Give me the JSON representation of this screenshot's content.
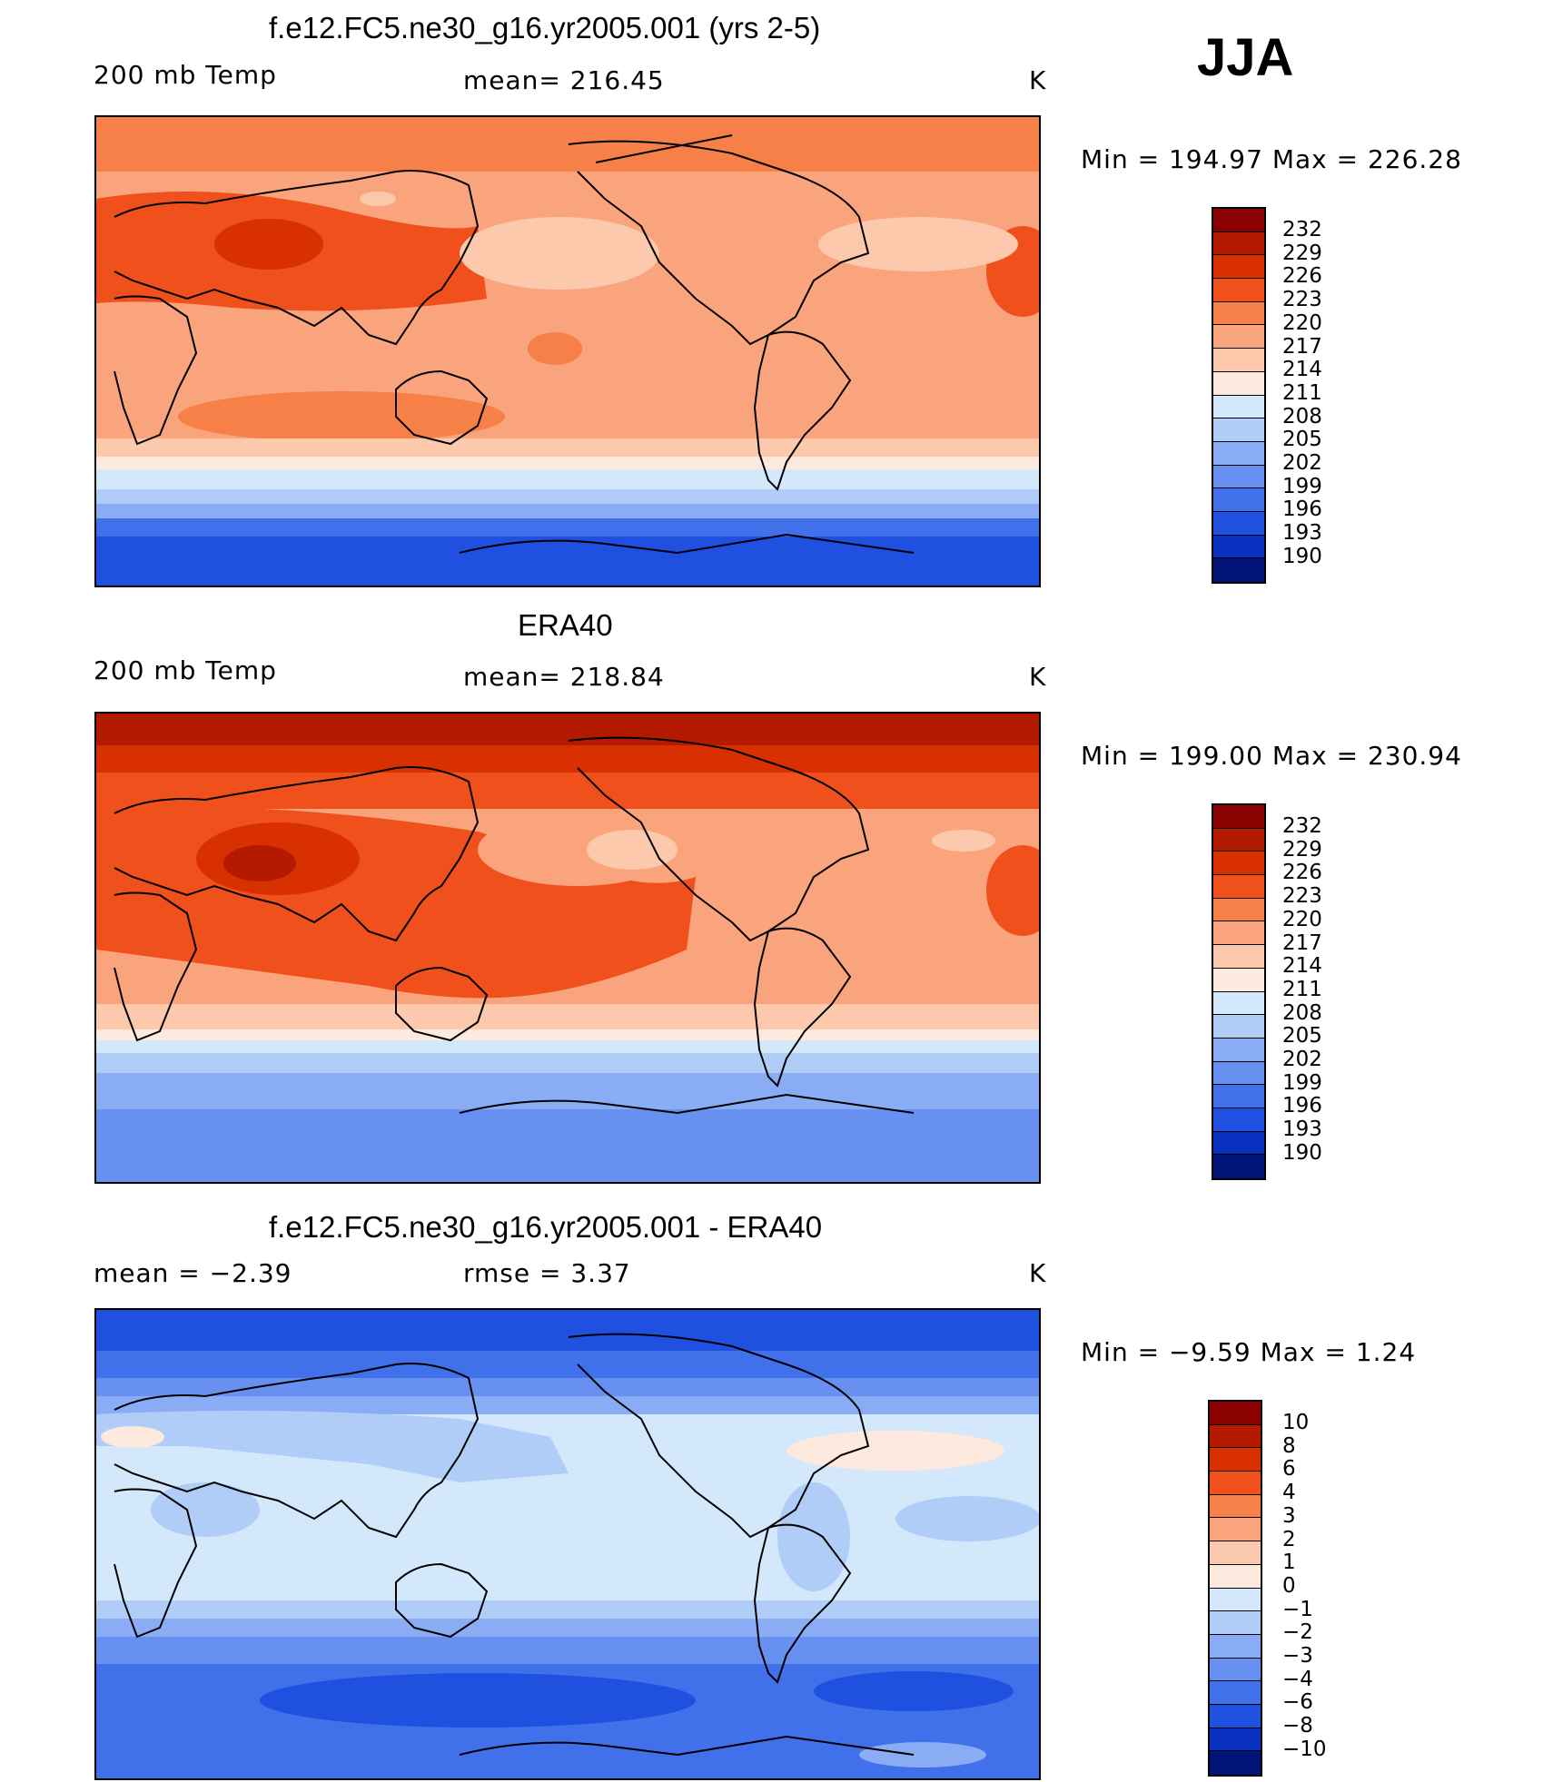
{
  "season": "JJA",
  "colors": {
    "c232": "#8b0000",
    "c229": "#b31a00",
    "c226": "#d83000",
    "c223": "#f0501c",
    "c220": "#f78048",
    "c217": "#f9a47c",
    "c214": "#fcc9ad",
    "c211": "#fde9dd",
    "c208": "#d4e8fc",
    "c205": "#b0cdf8",
    "c202": "#8aacf4",
    "c199": "#6890f0",
    "c196": "#4070ea",
    "c193": "#2050e0",
    "c190": "#0a30c0",
    "cbase": "#001478",
    "land_line": "#000000"
  },
  "panels": [
    {
      "title": "f.e12.FC5.ne30_g16.yr2005.001 (yrs 2-5)",
      "left": "200 mb Temp",
      "center": "mean=  216.45",
      "right": "K",
      "minmax": "Min  =  194.97  Max  =  226.28",
      "colorbar_labels": [
        "232",
        "229",
        "226",
        "223",
        "220",
        "217",
        "214",
        "211",
        "208",
        "205",
        "202",
        "199",
        "196",
        "193",
        "190"
      ]
    },
    {
      "title": "ERA40",
      "left": "200 mb Temp",
      "center": "mean=  218.84",
      "right": "K",
      "minmax": "Min  =  199.00  Max  =  230.94",
      "colorbar_labels": [
        "232",
        "229",
        "226",
        "223",
        "220",
        "217",
        "214",
        "211",
        "208",
        "205",
        "202",
        "199",
        "196",
        "193",
        "190"
      ]
    },
    {
      "title": "f.e12.FC5.ne30_g16.yr2005.001 - ERA40",
      "left": "mean  =    −2.39",
      "center": "rmse  =     3.37",
      "right": "K",
      "minmax": "Min  =    −9.59  Max  =      1.24",
      "colorbar_labels": [
        "10",
        "8",
        "6",
        "4",
        "3",
        "2",
        "1",
        "0",
        "−1",
        "−2",
        "−3",
        "−4",
        "−6",
        "−8",
        "−10"
      ]
    }
  ]
}
